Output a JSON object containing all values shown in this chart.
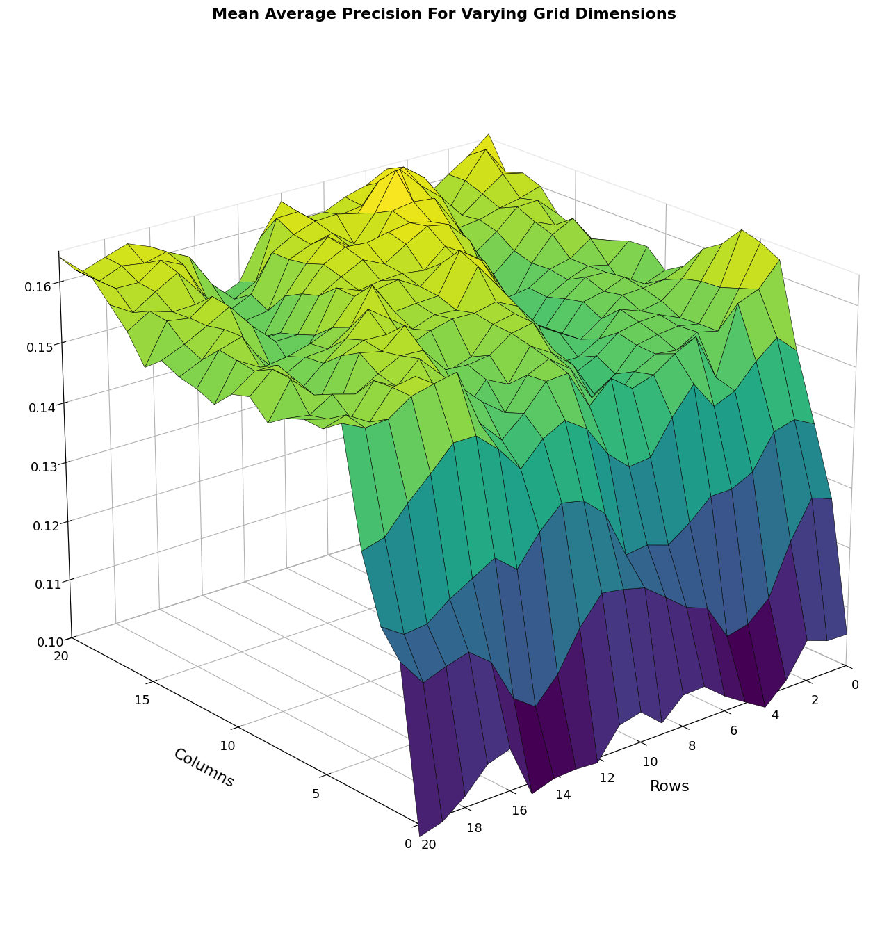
{
  "title": "Mean Average Precision For Varying Grid Dimensions",
  "xlabel": "Rows",
  "ylabel": "Columns",
  "zlim": [
    0.1,
    0.165
  ],
  "zticks": [
    0.1,
    0.11,
    0.12,
    0.13,
    0.14,
    0.15,
    0.16
  ],
  "colormap": "viridis",
  "figsize": [
    12.79,
    13.32
  ],
  "dpi": 100,
  "elev": 22,
  "azim": -130,
  "seed": 17
}
